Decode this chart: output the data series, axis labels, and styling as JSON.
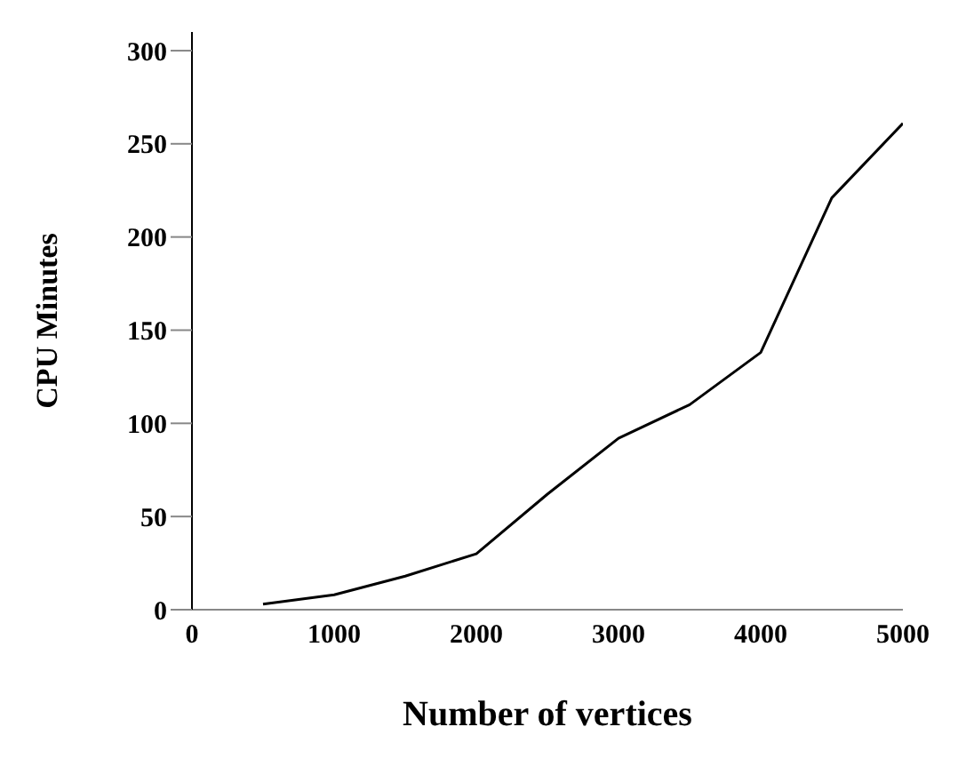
{
  "chart_data": {
    "type": "line",
    "xlabel": "Number of vertices",
    "ylabel": "CPU Minutes",
    "x": [
      500,
      1000,
      1500,
      2000,
      2500,
      3000,
      3500,
      4000,
      4500,
      5000
    ],
    "series": [
      {
        "color": "#000000",
        "values": [
          3,
          8,
          18,
          30,
          62,
          92,
          110,
          138,
          221,
          261
        ]
      }
    ],
    "xlim": [
      0,
      5000
    ],
    "xticks": [
      0,
      1000,
      2000,
      3000,
      4000,
      5000
    ],
    "ylim": [
      0,
      310
    ],
    "yticks": [
      0,
      50,
      100,
      150,
      200,
      250,
      300
    ],
    "grid": false,
    "legend": false,
    "marker": "none",
    "line_style": "solid"
  }
}
